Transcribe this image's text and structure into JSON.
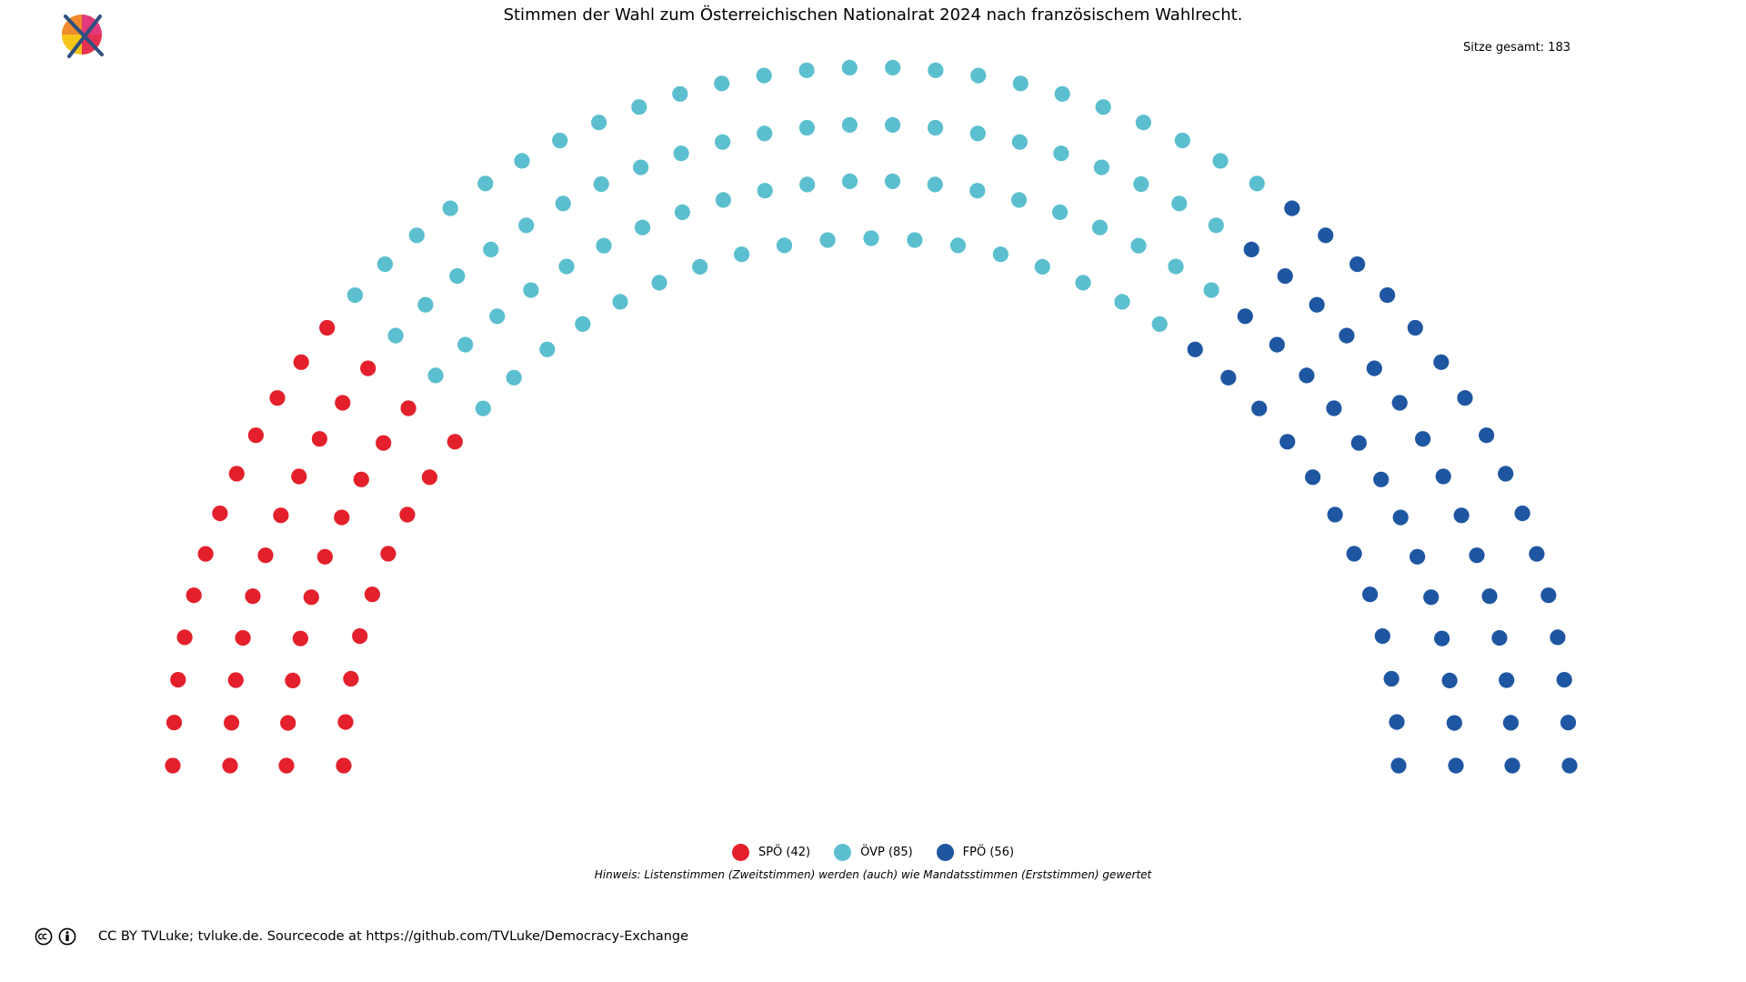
{
  "title": "Stimmen der Wahl zum Österreichischen Nationalrat 2024 nach französischem Wahlrecht.",
  "seats_total_label": "Sitze gesamt: 183",
  "note": "Hinweis: Listenstimmen (Zweitstimmen) werden (auch) wie Mandatsstimmen (Erststimmen) gewertet",
  "footer": {
    "text": "CC BY TVLuke; tvluke.de. Sourcecode at https://github.com/TVLuke/Democracy-Exchange",
    "icons": [
      "cc-icon",
      "by-icon"
    ]
  },
  "chart_data": {
    "type": "parliament",
    "total_seats": 183,
    "rows": 4,
    "parties": [
      {
        "name": "SPÖ",
        "seats": 42,
        "color": "#e3202b",
        "legend_label": "SPÖ (42)"
      },
      {
        "name": "ÖVP",
        "seats": 85,
        "color": "#5bbfcf",
        "legend_label": "ÖVP (85)"
      },
      {
        "name": "FPÖ",
        "seats": 56,
        "color": "#1e56a1",
        "legend_label": "FPÖ (56)"
      }
    ]
  }
}
